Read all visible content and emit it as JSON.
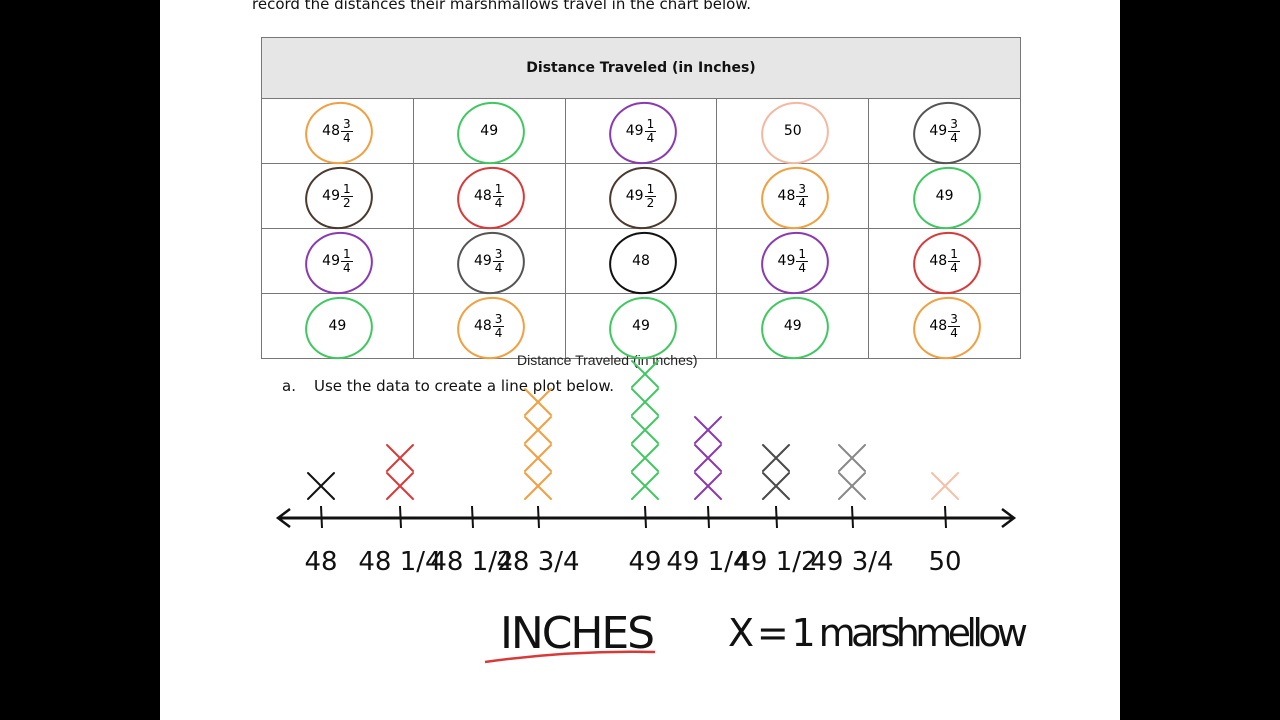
{
  "intro_text": "record the distances their marshmallows travel in the chart below.",
  "table": {
    "title": "Distance Traveled (in Inches)",
    "rows": [
      [
        {
          "whole": "48",
          "num": "3",
          "den": "4",
          "circle": "#f0a040"
        },
        {
          "whole": "49",
          "circle": "#40c860"
        },
        {
          "whole": "49",
          "num": "1",
          "den": "4",
          "circle": "#8a3ab0"
        },
        {
          "whole": "50",
          "circle": "#f4b8a0"
        },
        {
          "whole": "49",
          "num": "3",
          "den": "4",
          "circle": "#555555"
        }
      ],
      [
        {
          "whole": "49",
          "num": "1",
          "den": "2",
          "circle": "#4a3a30"
        },
        {
          "whole": "48",
          "num": "1",
          "den": "4",
          "circle": "#d83a3a"
        },
        {
          "whole": "49",
          "num": "1",
          "den": "2",
          "circle": "#4a3a30"
        },
        {
          "whole": "48",
          "num": "3",
          "den": "4",
          "circle": "#f0a040"
        },
        {
          "whole": "49",
          "circle": "#40c860"
        }
      ],
      [
        {
          "whole": "49",
          "num": "1",
          "den": "4",
          "circle": "#8a3ab0"
        },
        {
          "whole": "49",
          "num": "3",
          "den": "4",
          "circle": "#555555"
        },
        {
          "whole": "48",
          "circle": "#111111"
        },
        {
          "whole": "49",
          "num": "1",
          "den": "4",
          "circle": "#8a3ab0"
        },
        {
          "whole": "48",
          "num": "1",
          "den": "4",
          "circle": "#d83a3a"
        }
      ],
      [
        {
          "whole": "49",
          "circle": "#40c860"
        },
        {
          "whole": "48",
          "num": "3",
          "den": "4",
          "circle": "#f0a040"
        },
        {
          "whole": "49",
          "circle": "#40c860"
        },
        {
          "whole": "49",
          "circle": "#40c860"
        },
        {
          "whole": "48",
          "num": "3",
          "den": "4",
          "circle": "#f0a040"
        }
      ]
    ]
  },
  "plot_title": "Distance Traveled (in inches)",
  "question": {
    "letter": "a.",
    "text": "Use the data to create a line plot below."
  },
  "line_plot": {
    "ticks": [
      "48",
      "48 1/4",
      "48 1/2",
      "48 3/4",
      "49",
      "49 1/4",
      "49 1/2",
      "49 3/4",
      "50"
    ],
    "counts": [
      1,
      2,
      0,
      4,
      5,
      3,
      2,
      2,
      1
    ],
    "colors": [
      "#111111",
      "#d83a3a",
      "#111111",
      "#f0a040",
      "#40c860",
      "#8a3ab0",
      "#4a4a4a",
      "#888888",
      "#f4c0a8"
    ],
    "unit_label": "INCHES",
    "key": "X = 1 marshmellow"
  }
}
